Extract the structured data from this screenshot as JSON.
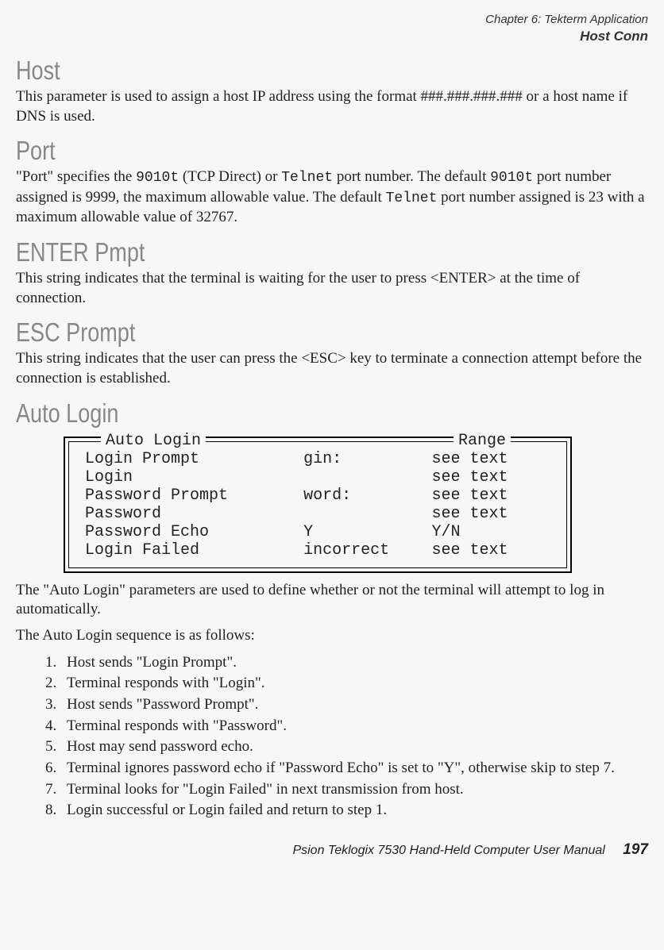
{
  "header": {
    "chapter": "Chapter 6: Tekterm Application",
    "sub": "Host Conn"
  },
  "sections": {
    "host": {
      "title": "Host",
      "body": "This parameter is used to assign a host IP address using the format ###.###.###.### or a host name if DNS is used."
    },
    "port": {
      "title": "Port",
      "pre1": "\"Port\" specifies the ",
      "code1": "9010t",
      "mid1": " (TCP Direct) or ",
      "code2": "Telnet",
      "mid2": " port number. The default ",
      "code3": "9010t",
      "mid3": " port number assigned is 9999, the maximum allowable value. The default ",
      "code4": "Telnet",
      "post": " port number assigned is 23 with a maximum allowable value of 32767."
    },
    "enter": {
      "title": "ENTER Pmpt",
      "body": "This string indicates that the terminal is waiting for the user to press <ENTER> at the time of connection."
    },
    "esc": {
      "title": "ESC Prompt",
      "body": "This string indicates that the user can press the <ESC> key to terminate a connection attempt before the connection is established."
    },
    "auto": {
      "title": "Auto Login",
      "box": {
        "label_left": "Auto Login",
        "label_right": "Range",
        "rows": [
          {
            "c1": "Login Prompt",
            "c2": "gin:",
            "c3": "see text"
          },
          {
            "c1": "Login",
            "c2": "",
            "c3": "see text"
          },
          {
            "c1": "Password Prompt",
            "c2": "word:",
            "c3": "see text"
          },
          {
            "c1": "Password",
            "c2": "",
            "c3": "see text"
          },
          {
            "c1": "Password Echo",
            "c2": "Y",
            "c3": "Y/N"
          },
          {
            "c1": "Login Failed",
            "c2": "incorrect",
            "c3": "see text"
          }
        ]
      },
      "after1": "The \"Auto Login\" parameters are used to define whether or not the terminal will attempt to log in automatically.",
      "after2": "The Auto Login sequence is as follows:",
      "steps": [
        "Host sends \"Login Prompt\".",
        "Terminal responds with \"Login\".",
        "Host sends \"Password Prompt\".",
        "Terminal responds with \"Password\".",
        "Host may send password echo.",
        "Terminal ignores password echo if \"Password Echo\" is set to \"Y\", otherwise skip to step 7.",
        "Terminal looks for \"Login Failed\" in next transmission from host.",
        "Login successful or Login failed and return to step 1."
      ]
    }
  },
  "footer": {
    "text": "Psion Teklogix 7530 Hand-Held Computer User Manual",
    "page": "197"
  }
}
